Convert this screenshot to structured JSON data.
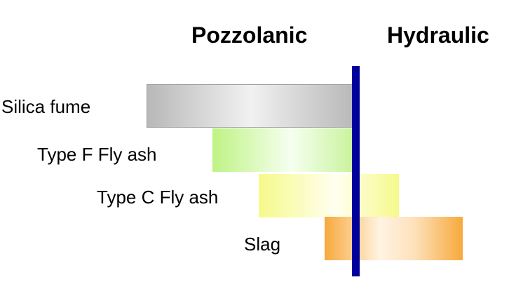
{
  "headings": {
    "left": "Pozzolanic",
    "right": "Hydraulic"
  },
  "materials": [
    {
      "label": "Silica fume",
      "color": "#b8b8b8"
    },
    {
      "label": "Type F Fly ash",
      "color": "#bff384"
    },
    {
      "label": "Type C Fly ash",
      "color": "#f6f98a"
    },
    {
      "label": "Slag",
      "color": "#f7a93c"
    }
  ],
  "divider_color": "#00009c"
}
